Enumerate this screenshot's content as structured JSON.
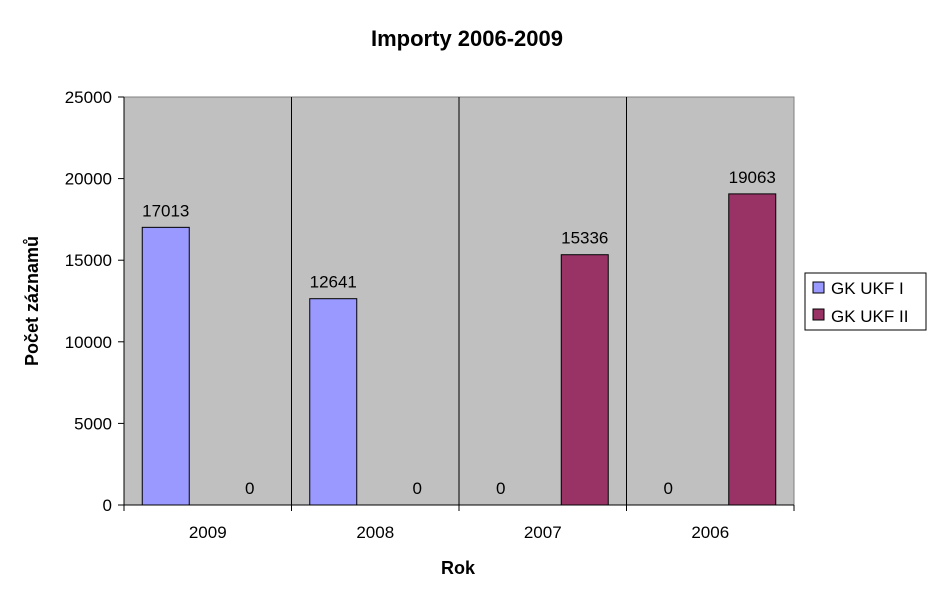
{
  "chart_data": {
    "type": "bar",
    "title": "Importy 2006-2009",
    "xlabel": "Rok",
    "ylabel": "Počet záznamů",
    "categories": [
      "2009",
      "2008",
      "2007",
      "2006"
    ],
    "series": [
      {
        "name": "GK UKF I",
        "values": [
          17013,
          12641,
          0,
          0
        ],
        "color": "#9999FF"
      },
      {
        "name": "GK UKF II",
        "values": [
          0,
          0,
          15336,
          19063
        ],
        "color": "#993366"
      }
    ],
    "ylim": [
      0,
      25000
    ],
    "yticks": [
      0,
      5000,
      10000,
      15000,
      20000,
      25000
    ],
    "data_labels": true,
    "grid": false,
    "plot_background": "#C0C0C0",
    "legend_position": "right"
  }
}
